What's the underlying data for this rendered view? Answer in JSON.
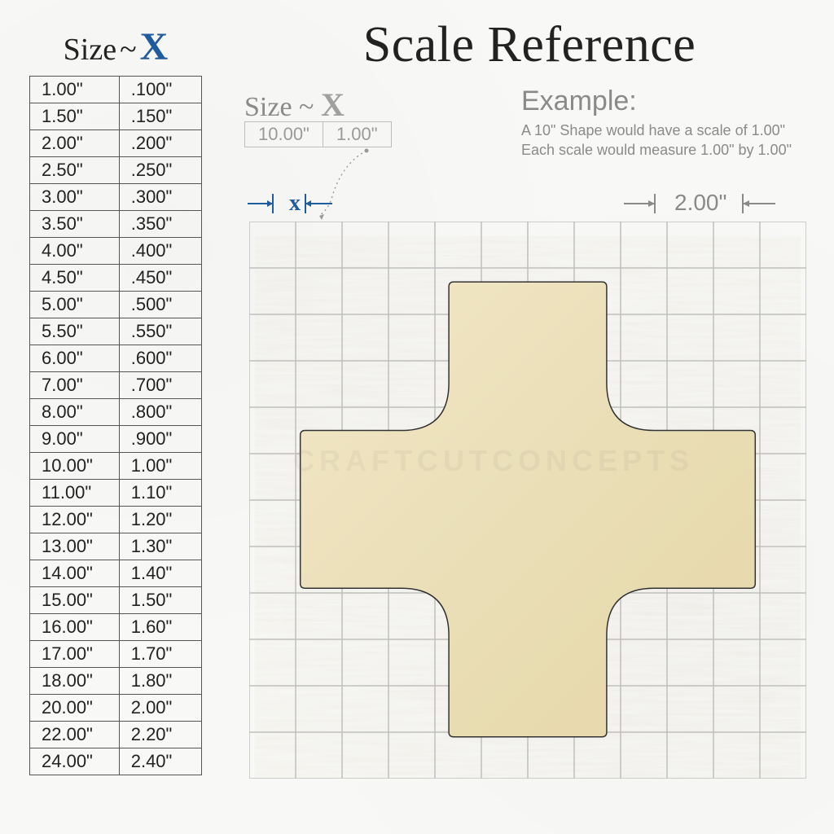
{
  "title": "Scale Reference",
  "table_header": {
    "size": "Size",
    "sep": "~",
    "x": "X"
  },
  "size_table": {
    "columns": [
      "Size",
      "X"
    ],
    "rows": [
      [
        "1.00\"",
        ".100\""
      ],
      [
        "1.50\"",
        ".150\""
      ],
      [
        "2.00\"",
        ".200\""
      ],
      [
        "2.50\"",
        ".250\""
      ],
      [
        "3.00\"",
        ".300\""
      ],
      [
        "3.50\"",
        ".350\""
      ],
      [
        "4.00\"",
        ".400\""
      ],
      [
        "4.50\"",
        ".450\""
      ],
      [
        "5.00\"",
        ".500\""
      ],
      [
        "5.50\"",
        ".550\""
      ],
      [
        "6.00\"",
        ".600\""
      ],
      [
        "7.00\"",
        ".700\""
      ],
      [
        "8.00\"",
        ".800\""
      ],
      [
        "9.00\"",
        ".900\""
      ],
      [
        "10.00\"",
        "1.00\""
      ],
      [
        "11.00\"",
        "1.10\""
      ],
      [
        "12.00\"",
        "1.20\""
      ],
      [
        "13.00\"",
        "1.30\""
      ],
      [
        "14.00\"",
        "1.40\""
      ],
      [
        "15.00\"",
        "1.50\""
      ],
      [
        "16.00\"",
        "1.60\""
      ],
      [
        "17.00\"",
        "1.70\""
      ],
      [
        "18.00\"",
        "1.80\""
      ],
      [
        "20.00\"",
        "2.00\""
      ],
      [
        "22.00\"",
        "2.20\""
      ],
      [
        "24.00\"",
        "2.40\""
      ]
    ],
    "border_color": "#555555",
    "font_size": 22
  },
  "sub_header": {
    "size": "Size",
    "sep": "~",
    "x": "X",
    "mini_row": [
      "10.00\"",
      "1.00\""
    ]
  },
  "example": {
    "heading": "Example:",
    "line1": "A 10\" Shape would have a scale of 1.00\"",
    "line2": "Each scale would measure 1.00\" by 1.00\""
  },
  "x_marker": {
    "label": "x",
    "arrow_color": "#1e5c9e",
    "label_color": "#1e5c9e"
  },
  "dimension": {
    "label": "2.00\"",
    "arrow_color": "#8a8a8a",
    "label_color": "#8a8a8a"
  },
  "grid": {
    "cells": 12,
    "line_color": "#bfbfbf",
    "line_width": 1.5,
    "background": "transparent"
  },
  "cross": {
    "fill": "#f0e4c0",
    "stroke": "#333333",
    "stroke_width": 1.5,
    "center_cell": [
      6,
      6.2
    ],
    "arm_half_cells": 4.9,
    "arm_thickness_cells": 3.4,
    "corner_radius_pct": 0.15,
    "wood_grain_colors": [
      "#f3e8c6",
      "#eadfb8",
      "#e6d7a8"
    ]
  },
  "watermark": "CRAFTCUTCONCEPTS",
  "colors": {
    "page_bg": "#f8f8f6",
    "title_color": "#222222",
    "accent_blue": "#1e5c9e",
    "muted_gray": "#8a8a8a"
  }
}
